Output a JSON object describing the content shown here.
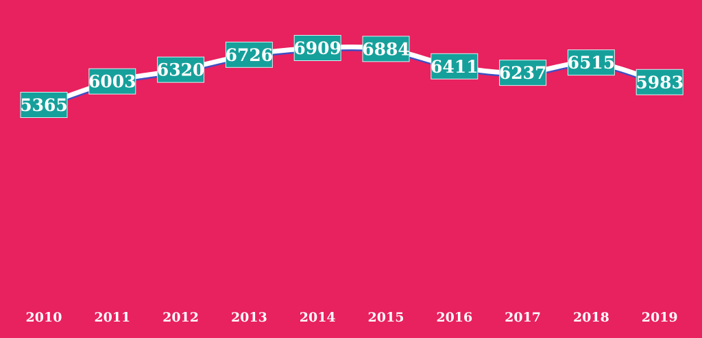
{
  "chart_data": {
    "type": "line",
    "categories": [
      "2010",
      "2011",
      "2012",
      "2013",
      "2014",
      "2015",
      "2016",
      "2017",
      "2018",
      "2019"
    ],
    "values": [
      5365,
      6003,
      6320,
      6726,
      6909,
      6884,
      6411,
      6237,
      6515,
      5983
    ],
    "title": "",
    "xlabel": "",
    "ylabel": "",
    "ylim": [
      0,
      7000
    ],
    "grid": false,
    "legend": "none",
    "smooth": true
  },
  "colors": {
    "background": "#E8215F",
    "line": "#FFFFFF",
    "line_shadow": "#3D4FC4",
    "label_box": "#16A09B",
    "label_box_border": "#D9F2F1",
    "label_text": "#FFFFFF",
    "drop_line": "#FFFFFF"
  }
}
